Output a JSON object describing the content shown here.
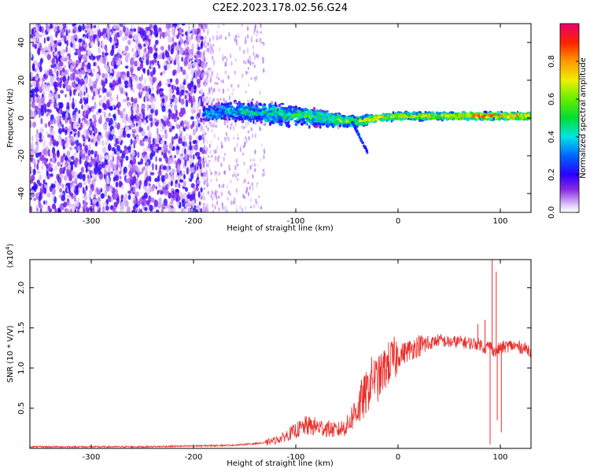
{
  "title": "C2E2.2023.178.02.56.G24",
  "chart_data": [
    {
      "type": "heatmap",
      "xlabel": "Height of straight line (km)",
      "ylabel": "Frequency (Hz)",
      "xlim": [
        -360,
        130
      ],
      "ylim": [
        -50,
        50
      ],
      "xticks": [
        -300,
        -200,
        -100,
        0,
        100
      ],
      "yticks": [
        -40,
        -20,
        0,
        20,
        40
      ],
      "colorbar": {
        "label": "Normalized spectral amplitude",
        "range": [
          0.0,
          1.0
        ],
        "ticks": [
          "0.0",
          "0.2",
          "0.4",
          "0.6",
          "0.8"
        ]
      },
      "noise_region_x": [
        -360,
        -190
      ],
      "signal_band": [
        {
          "x": -190,
          "f": 3,
          "width": 12,
          "amp": 0.35
        },
        {
          "x": -150,
          "f": 3,
          "width": 14,
          "amp": 0.4
        },
        {
          "x": -120,
          "f": 2,
          "width": 16,
          "amp": 0.45
        },
        {
          "x": -90,
          "f": 1,
          "width": 12,
          "amp": 0.5
        },
        {
          "x": -60,
          "f": -1,
          "width": 9,
          "amp": 0.55
        },
        {
          "x": -40,
          "f": -2,
          "width": 7,
          "amp": 0.6
        },
        {
          "x": -20,
          "f": 0,
          "width": 5,
          "amp": 0.75
        },
        {
          "x": 0,
          "f": 1,
          "width": 5,
          "amp": 0.7
        },
        {
          "x": 40,
          "f": 1,
          "width": 5,
          "amp": 0.72
        },
        {
          "x": 80,
          "f": 1,
          "width": 5,
          "amp": 0.85
        },
        {
          "x": 130,
          "f": 1,
          "width": 5,
          "amp": 0.78
        }
      ]
    },
    {
      "type": "line",
      "xlabel": "Height of straight line (km)",
      "ylabel": "SNR (10 * V/V)",
      "yscale_label": "(x10",
      "yscale_exponent": "4",
      "xlim": [
        -360,
        130
      ],
      "ylim": [
        0,
        2.35
      ],
      "xticks": [
        -300,
        -200,
        -100,
        0,
        100
      ],
      "yticks": [
        "0.5",
        "1.0",
        "1.5",
        "2.0"
      ],
      "series": [
        {
          "color": "#e8302c",
          "x": [
            -360,
            -300,
            -250,
            -200,
            -160,
            -130,
            -115,
            -100,
            -90,
            -80,
            -70,
            -60,
            -50,
            -40,
            -30,
            -25,
            -20,
            -15,
            -10,
            -5,
            0,
            10,
            20,
            30,
            40,
            50,
            60,
            70,
            80,
            85,
            90,
            95,
            100,
            110,
            120,
            130
          ],
          "y": [
            0.02,
            0.02,
            0.02,
            0.03,
            0.04,
            0.07,
            0.12,
            0.22,
            0.28,
            0.27,
            0.25,
            0.22,
            0.28,
            0.5,
            0.7,
            0.9,
            0.85,
            0.95,
            1.05,
            1.1,
            1.15,
            1.22,
            1.28,
            1.3,
            1.35,
            1.32,
            1.33,
            1.31,
            1.3,
            1.25,
            1.28,
            1.2,
            1.25,
            1.28,
            1.26,
            1.22
          ]
        }
      ],
      "spikes": [
        {
          "x": 92,
          "y": 2.35
        },
        {
          "x": 96,
          "y": 2.2
        },
        {
          "x": 85,
          "y": 1.6
        },
        {
          "x": 78,
          "y": 1.55
        }
      ],
      "dips": [
        {
          "x": 90,
          "y": 0.05
        },
        {
          "x": 101,
          "y": 0.2
        },
        {
          "x": 97,
          "y": 0.35
        }
      ]
    }
  ]
}
